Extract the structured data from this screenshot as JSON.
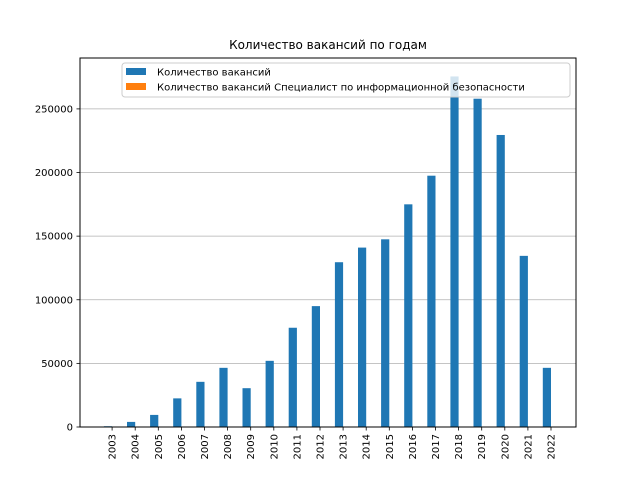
{
  "chart_data": {
    "type": "bar",
    "title": "Количество вакансий по годам",
    "xlabel": "",
    "ylabel": "",
    "categories": [
      "2003",
      "2004",
      "2005",
      "2006",
      "2007",
      "2008",
      "2009",
      "2010",
      "2011",
      "2012",
      "2013",
      "2014",
      "2015",
      "2016",
      "2017",
      "2018",
      "2019",
      "2020",
      "2021",
      "2022"
    ],
    "series": [
      {
        "name": "Количество вакансий",
        "color": "#1f77b4",
        "values": [
          600,
          4000,
          9500,
          22500,
          35500,
          46500,
          30500,
          52000,
          78000,
          95000,
          129500,
          141000,
          147500,
          175000,
          197500,
          275500,
          258000,
          229500,
          134500,
          46500
        ]
      },
      {
        "name": "Количество вакансий Специалист по информационной безопасности",
        "color": "#ff7f0e",
        "values": [
          0,
          0,
          0,
          0,
          0,
          0,
          0,
          0,
          0,
          0,
          0,
          0,
          0,
          0,
          0,
          0,
          0,
          0,
          0,
          0
        ]
      }
    ],
    "ylim": [
      0,
      290000
    ],
    "yticks": [
      0,
      50000,
      100000,
      150000,
      200000,
      250000
    ],
    "grid": "y",
    "legend_position": "top-right"
  }
}
